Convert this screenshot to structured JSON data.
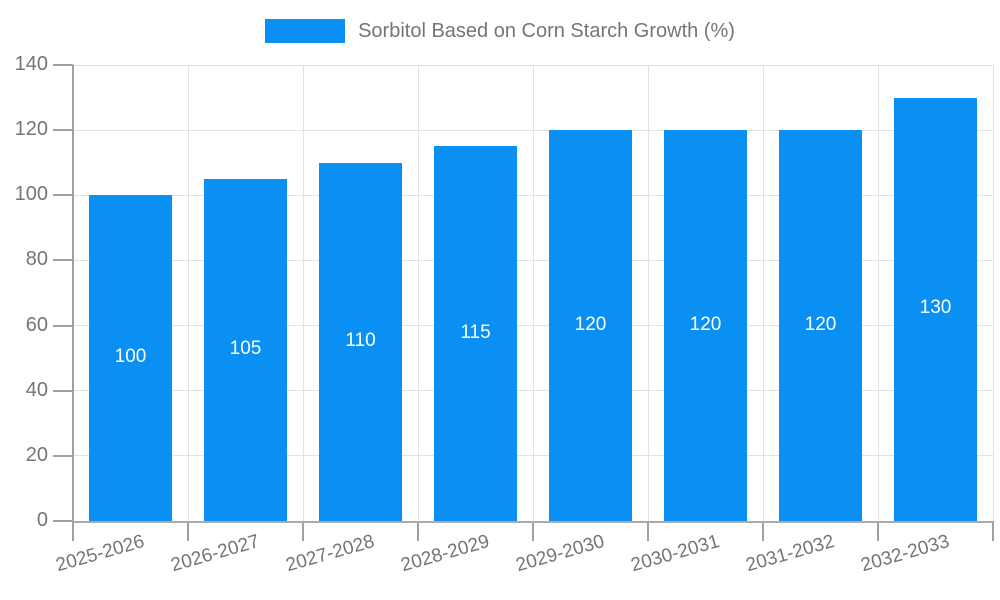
{
  "page": {
    "background": "#ffffff"
  },
  "legend": {
    "label": "Sorbitol Based on Corn Starch Growth (%)",
    "swatch_color": "#0a90f2",
    "position": "top-center"
  },
  "chart_data": {
    "type": "bar",
    "title": "Sorbitol Based on Corn Starch Growth (%)",
    "legend_entries": [
      "Sorbitol Based on Corn Starch Growth (%)"
    ],
    "categories": [
      "2025-2026",
      "2026-2027",
      "2027-2028",
      "2028-2029",
      "2029-2030",
      "2030-2031",
      "2031-2032",
      "2032-2033"
    ],
    "values": [
      100,
      105,
      110,
      115,
      120,
      120,
      120,
      130
    ],
    "bar_labels": [
      "100",
      "105",
      "110",
      "115",
      "120",
      "120",
      "120",
      "130"
    ],
    "xlabel": "",
    "ylabel": "",
    "ylim": [
      0,
      140
    ],
    "yticks": [
      0,
      20,
      40,
      60,
      80,
      100,
      120,
      140
    ],
    "ytick_labels": [
      "0",
      "20",
      "40",
      "60",
      "80",
      "100",
      "120",
      "140"
    ],
    "grid": true,
    "legend_position": "top-center",
    "x_tick_rotation_deg": -16,
    "colors": {
      "bar": "#0a90f2",
      "bar_label": "#ffffff",
      "axis_line": "#aaaaaa",
      "grid_line": "#e2e2e2",
      "tick_label": "#757575",
      "legend_text": "#757575",
      "background": "#ffffff"
    }
  }
}
